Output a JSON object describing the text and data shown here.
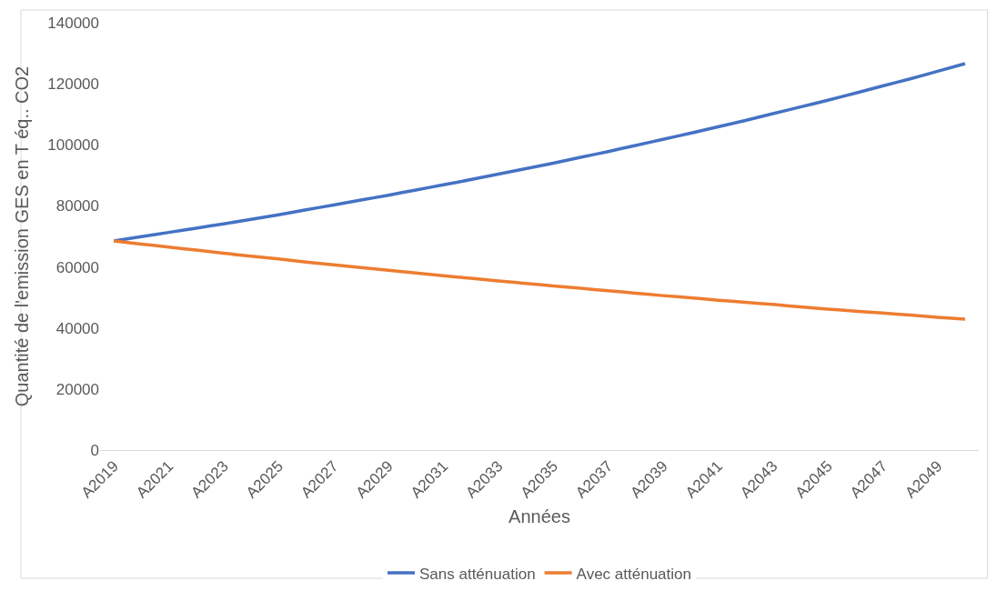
{
  "chart_data": {
    "type": "line",
    "xlabel": "Années",
    "ylabel": "Quantité de l'emission GES en T éq.. CO2",
    "categories": [
      "A2019",
      null,
      "A2021",
      null,
      "A2023",
      null,
      "A2025",
      null,
      "A2027",
      null,
      "A2029",
      null,
      "A2031",
      null,
      "A2033",
      null,
      "A2035",
      null,
      "A2037",
      null,
      "A2039",
      null,
      "A2041",
      null,
      "A2043",
      null,
      "A2045",
      null,
      "A2047",
      null,
      "A2049",
      null
    ],
    "series": [
      {
        "name": "Sans atténuation",
        "color": "#4472c4",
        "values": [
          68500,
          69900,
          71300,
          72700,
          74100,
          75600,
          77100,
          78700,
          80300,
          81900,
          83500,
          85200,
          86900,
          88600,
          90400,
          92200,
          94000,
          95900,
          97800,
          99800,
          101800,
          103800,
          105900,
          108000,
          110200,
          112400,
          114600,
          116900,
          119300,
          121600,
          124100,
          126600
        ]
      },
      {
        "name": "Avec atténuation",
        "color": "#ed7d31",
        "values": [
          68500,
          67500,
          66500,
          65500,
          64500,
          63500,
          62600,
          61600,
          60700,
          59800,
          58900,
          58000,
          57100,
          56300,
          55400,
          54600,
          53800,
          53000,
          52200,
          51400,
          50600,
          49900,
          49100,
          48400,
          47700,
          46900,
          46200,
          45500,
          44900,
          44200,
          43500,
          42900
        ]
      }
    ],
    "ylim": [
      0,
      140000
    ],
    "yticks": [
      0,
      20000,
      40000,
      60000,
      80000,
      100000,
      120000,
      140000
    ],
    "grid": false,
    "legend": "bottom",
    "marker": "none",
    "line_style": "solid"
  }
}
